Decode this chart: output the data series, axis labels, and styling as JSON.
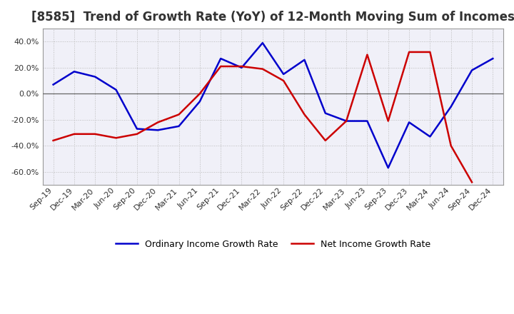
{
  "title": "[8585]  Trend of Growth Rate (YoY) of 12-Month Moving Sum of Incomes",
  "labels": [
    "Sep-19",
    "Dec-19",
    "Mar-20",
    "Jun-20",
    "Sep-20",
    "Dec-20",
    "Mar-21",
    "Jun-21",
    "Sep-21",
    "Dec-21",
    "Mar-22",
    "Jun-22",
    "Sep-22",
    "Dec-22",
    "Mar-23",
    "Jun-23",
    "Sep-23",
    "Dec-23",
    "Mar-24",
    "Jun-24",
    "Sep-24",
    "Dec-24"
  ],
  "ordinary_income": [
    0.07,
    0.17,
    0.13,
    0.03,
    -0.27,
    -0.28,
    -0.25,
    -0.06,
    0.27,
    0.2,
    0.39,
    0.15,
    0.26,
    -0.15,
    -0.21,
    -0.21,
    -0.57,
    -0.22,
    -0.33,
    -0.1,
    0.18,
    0.27
  ],
  "net_income": [
    -0.36,
    -0.31,
    -0.31,
    -0.34,
    -0.31,
    -0.22,
    -0.16,
    0.0,
    0.21,
    0.21,
    0.19,
    0.1,
    -0.16,
    -0.36,
    -0.21,
    0.3,
    -0.21,
    0.32,
    0.32,
    -0.4,
    -0.68,
    null
  ],
  "ylim": [
    -0.7,
    0.5
  ],
  "yticks": [
    -0.6,
    -0.4,
    -0.2,
    0.0,
    0.2,
    0.4
  ],
  "legend_labels": [
    "Ordinary Income Growth Rate",
    "Net Income Growth Rate"
  ],
  "ordinary_color": "#0000cc",
  "net_color": "#cc0000",
  "background_color": "#ffffff",
  "plot_bg_color": "#f0f0f8",
  "grid_color": "#bbbbbb",
  "title_fontsize": 12,
  "title_color": "#333333",
  "zero_line_color": "#666666",
  "tick_fontsize": 8,
  "legend_fontsize": 9
}
